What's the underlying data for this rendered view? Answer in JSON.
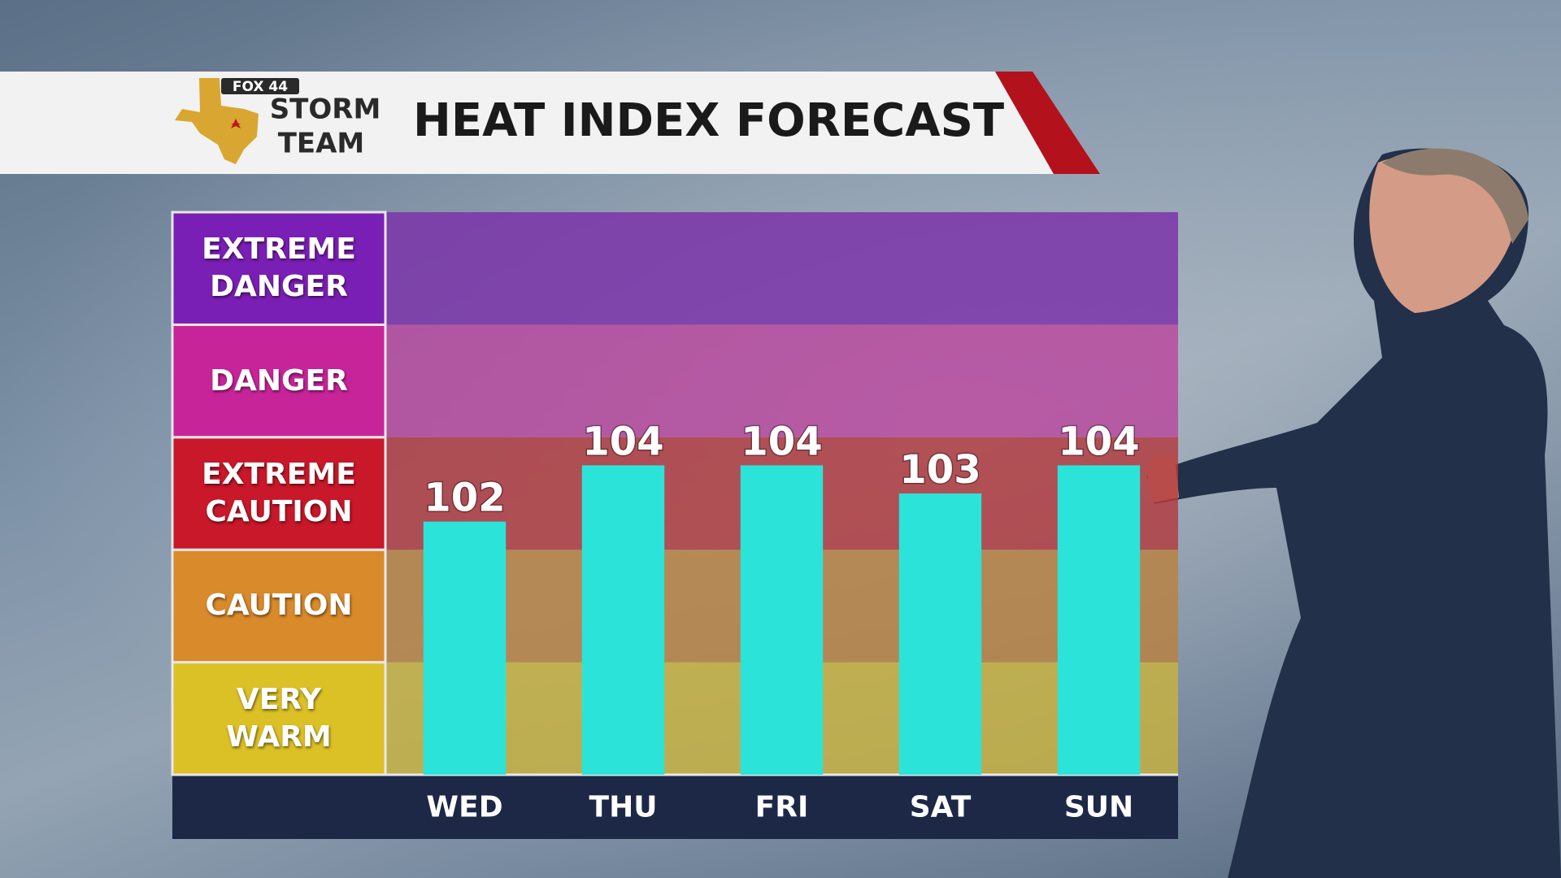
{
  "logo": {
    "network": "FOX 44",
    "line1": "STORM",
    "line2": "TEAM"
  },
  "chart_data": {
    "type": "bar",
    "title": "HEAT INDEX FORECAST",
    "categories": [
      "WED",
      "THU",
      "FRI",
      "SAT",
      "SUN"
    ],
    "values": [
      102,
      104,
      104,
      103,
      104
    ],
    "color": "#2ce3da",
    "ylim": [
      93,
      113
    ],
    "bands": [
      {
        "label": "VERY WARM",
        "color": "#dcc126",
        "tint": "#c9b23e"
      },
      {
        "label": "CAUTION",
        "color": "#d98a2a",
        "tint": "#b98140"
      },
      {
        "label": "EXTREME CAUTION",
        "color": "#c8182a",
        "tint": "#b23a3e"
      },
      {
        "label": "DANGER",
        "color": "#c8249a",
        "tint": "#b8479e"
      },
      {
        "label": "EXTREME DANGER",
        "color": "#7a1fb5",
        "tint": "#7a2fa8"
      }
    ]
  }
}
